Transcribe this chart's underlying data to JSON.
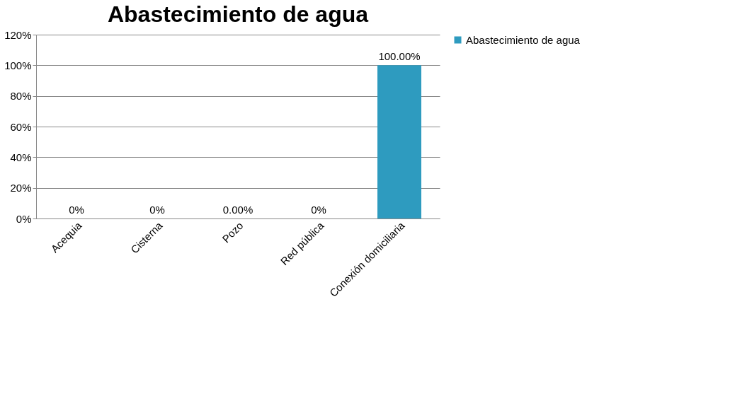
{
  "chart_data": {
    "type": "bar",
    "title": "Abastecimiento de agua",
    "categories": [
      "Acequia",
      "Cisterna",
      "Pozo",
      "Red pública",
      "Conexión domiciliaria"
    ],
    "series": [
      {
        "name": "Abastecimiento de agua",
        "color": "#2e9bbf",
        "values": [
          0,
          0,
          0,
          0,
          100
        ],
        "value_labels": [
          "0%",
          "0%",
          "0.00%",
          "0%",
          "100.00%"
        ]
      }
    ],
    "ylim": [
      0,
      120
    ],
    "yticks": [
      {
        "value": 0,
        "label": "0%"
      },
      {
        "value": 20,
        "label": "20%"
      },
      {
        "value": 40,
        "label": "40%"
      },
      {
        "value": 60,
        "label": "60%"
      },
      {
        "value": 80,
        "label": "80%"
      },
      {
        "value": 100,
        "label": "100%"
      },
      {
        "value": 120,
        "label": "120%"
      }
    ],
    "grid": "y",
    "legend": "right"
  }
}
